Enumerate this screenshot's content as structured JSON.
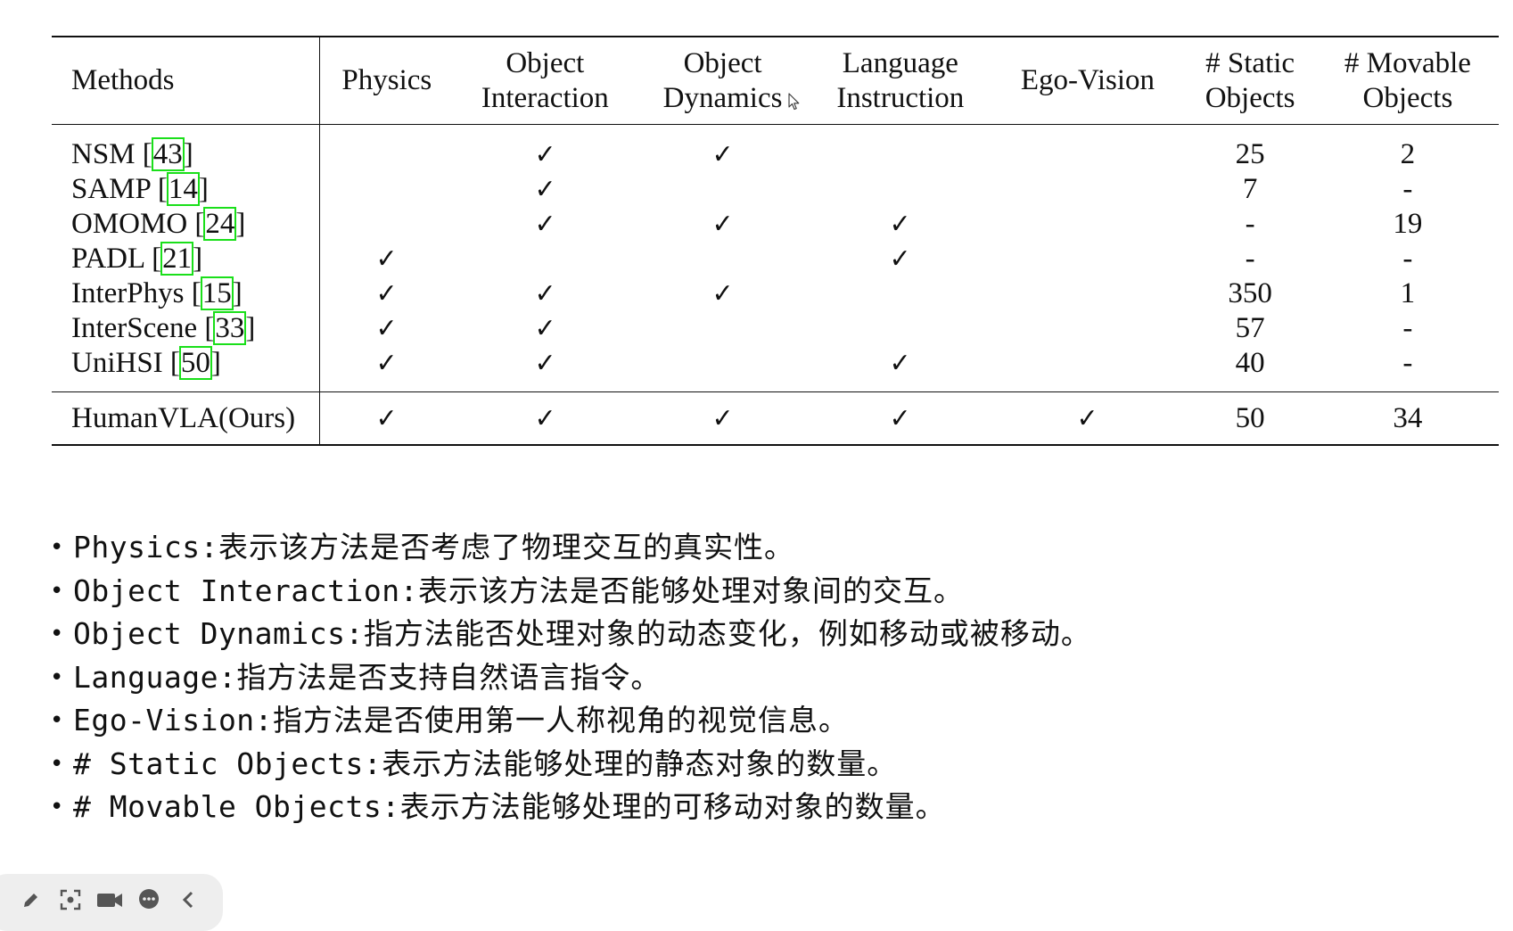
{
  "table": {
    "headers": {
      "methods": "Methods",
      "physics": "Physics",
      "object_interaction": [
        "Object",
        "Interaction"
      ],
      "object_dynamics": [
        "Object",
        "Dynamics"
      ],
      "language_instruction": [
        "Language",
        "Instruction"
      ],
      "ego_vision": "Ego-Vision",
      "static_objects": [
        "# Static",
        "Objects"
      ],
      "movable_objects": [
        "# Movable",
        "Objects"
      ]
    },
    "check_mark": "✓",
    "rows": [
      {
        "name": "NSM [",
        "cite": "43",
        "close": "]",
        "physics": "",
        "interaction": "✓",
        "dynamics": "✓",
        "language": "",
        "ego": "",
        "static": "25",
        "movable": "2"
      },
      {
        "name": "SAMP [",
        "cite": "14",
        "close": "]",
        "physics": "",
        "interaction": "✓",
        "dynamics": "",
        "language": "",
        "ego": "",
        "static": "7",
        "movable": "-"
      },
      {
        "name": "OMOMO [",
        "cite": "24",
        "close": "]",
        "physics": "",
        "interaction": "✓",
        "dynamics": "✓",
        "language": "✓",
        "ego": "",
        "static": "-",
        "movable": "19"
      },
      {
        "name": "PADL [",
        "cite": "21",
        "close": "]",
        "physics": "✓",
        "interaction": "",
        "dynamics": "",
        "language": "✓",
        "ego": "",
        "static": "-",
        "movable": "-"
      },
      {
        "name": "InterPhys [",
        "cite": "15",
        "close": "]",
        "physics": "✓",
        "interaction": "✓",
        "dynamics": "✓",
        "language": "",
        "ego": "",
        "static": "350",
        "movable": "1"
      },
      {
        "name": "InterScene [",
        "cite": "33",
        "close": "]",
        "physics": "✓",
        "interaction": "✓",
        "dynamics": "",
        "language": "",
        "ego": "",
        "static": "57",
        "movable": "-"
      },
      {
        "name": "UniHSI [",
        "cite": "50",
        "close": "]",
        "physics": "✓",
        "interaction": "✓",
        "dynamics": "",
        "language": "✓",
        "ego": "",
        "static": "40",
        "movable": "-"
      }
    ],
    "ours": {
      "name": "HumanVLA(Ours)",
      "physics": "✓",
      "interaction": "✓",
      "dynamics": "✓",
      "language": "✓",
      "ego": "✓",
      "static": "50",
      "movable": "34"
    }
  },
  "notes": [
    {
      "term": "Physics:",
      "desc": " 表示该方法是否考虑了物理交互的真实性。"
    },
    {
      "term": "Object Interaction:",
      "desc": " 表示该方法是否能够处理对象间的交互。"
    },
    {
      "term": "Object Dynamics:",
      "desc": " 指方法能否处理对象的动态变化，例如移动或被移动。"
    },
    {
      "term": "Language:",
      "desc": " 指方法是否支持自然语言指令。"
    },
    {
      "term": "Ego-Vision:",
      "desc": " 指方法是否使用第一人称视角的视觉信息。"
    },
    {
      "term": "# Static Objects:",
      "desc": " 表示方法能够处理的静态对象的数量。"
    },
    {
      "term": "# Movable Objects:",
      "desc": " 表示方法能够处理的可移动对象的数量。"
    }
  ],
  "bullet": "•",
  "toolbar": {
    "icons": [
      "pencil-icon",
      "screenshot-icon",
      "video-icon",
      "chat-icon",
      "collapse-icon"
    ]
  },
  "colors": {
    "citation_box": "#1adf1a",
    "text": "#111111",
    "toolbar_bg": "#eeeeee"
  }
}
